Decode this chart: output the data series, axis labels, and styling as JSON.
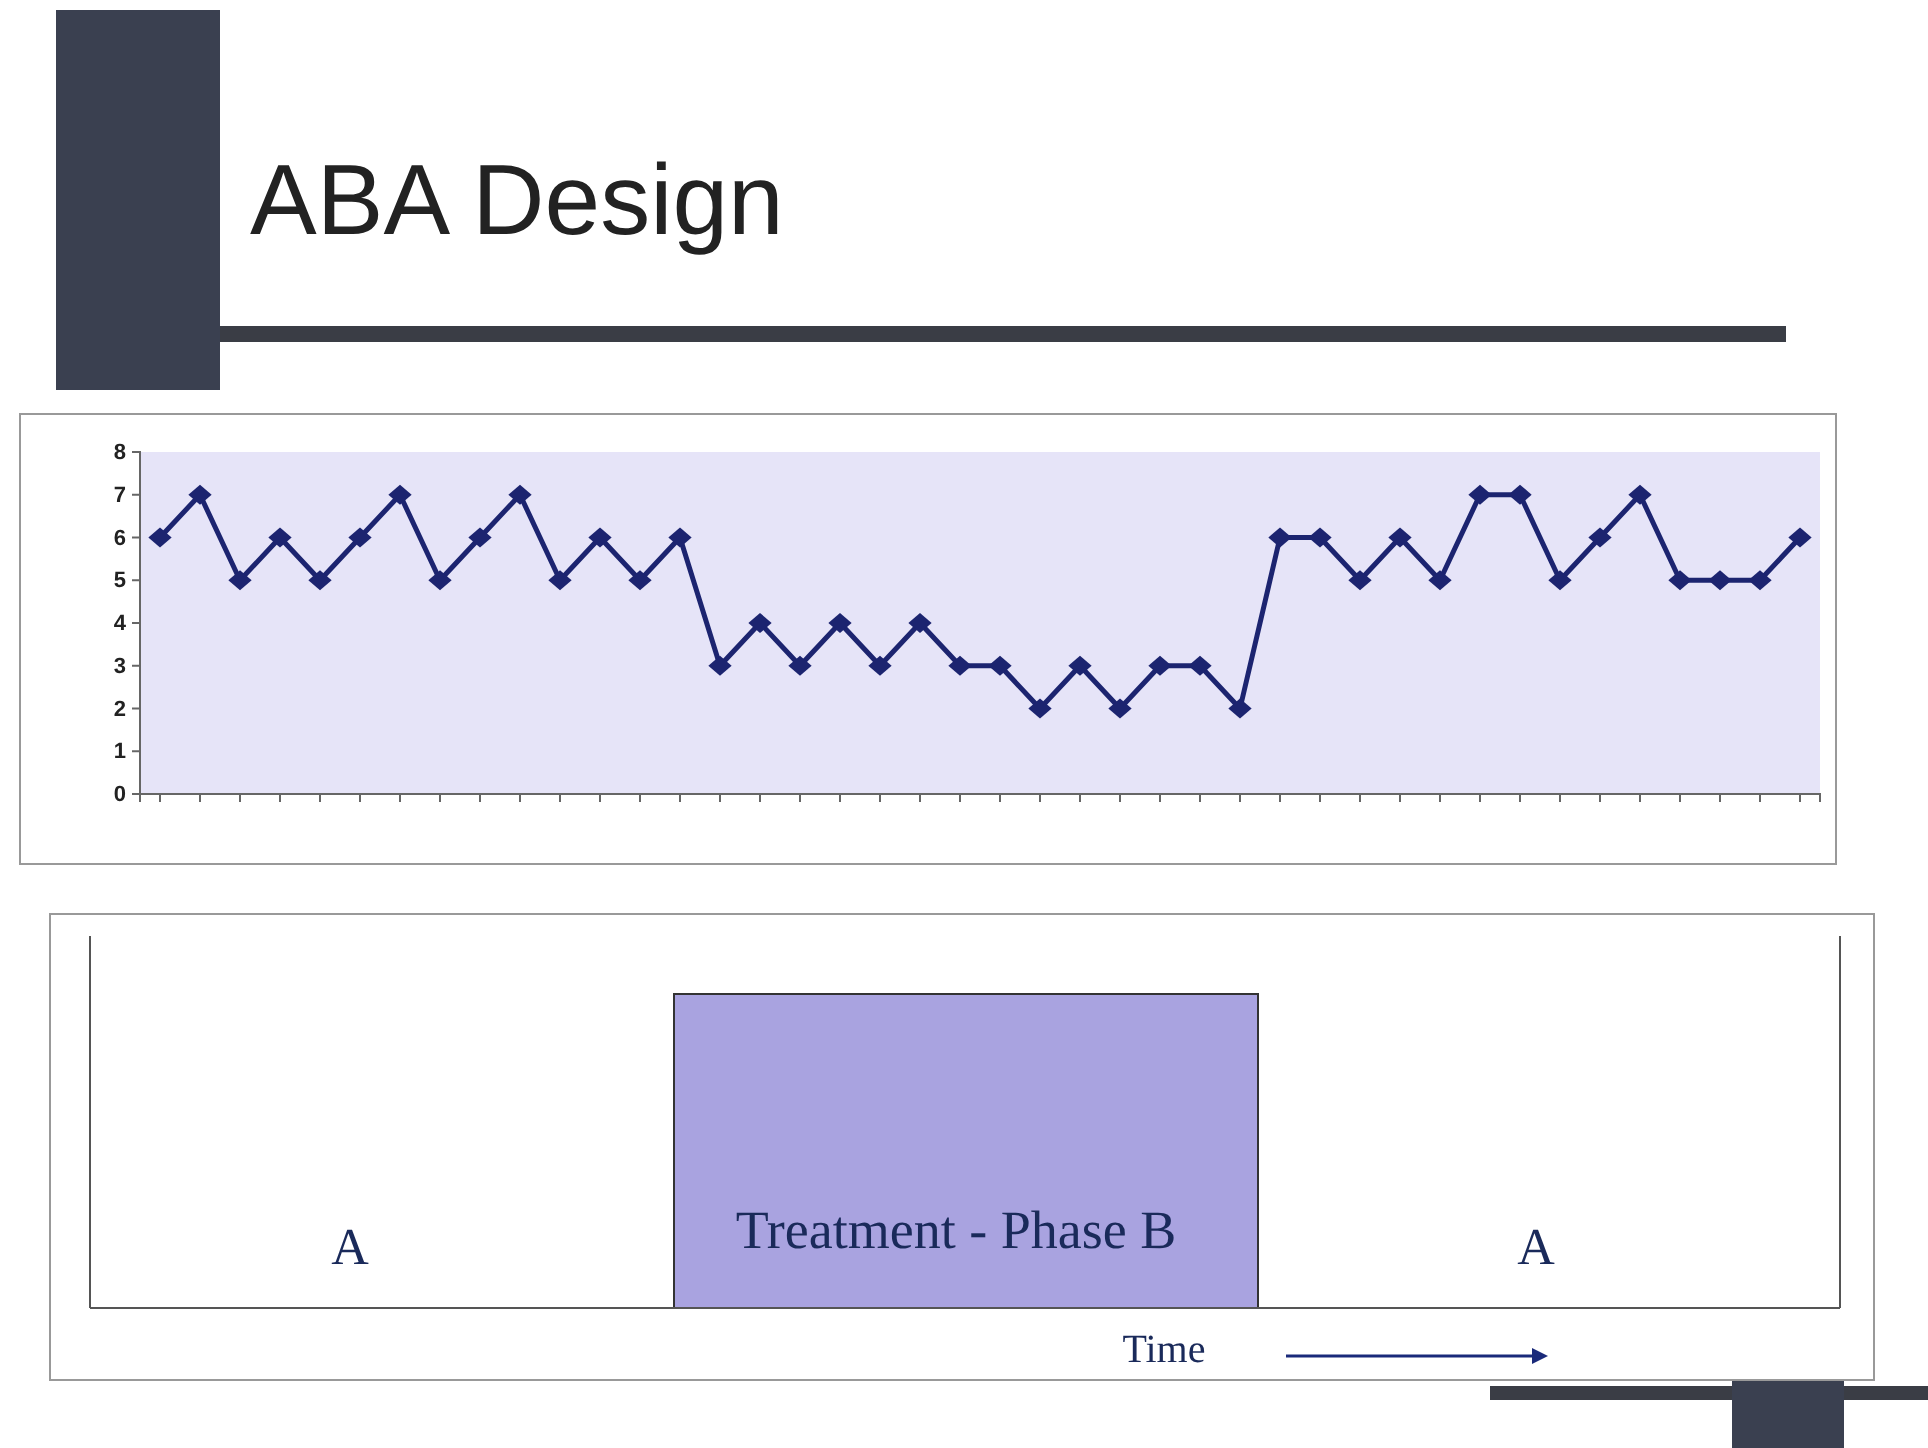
{
  "chart_data": [
    {
      "type": "line",
      "title": "ABA Design",
      "categories": [
        null,
        null,
        null,
        null,
        null,
        null,
        null,
        null,
        null,
        null,
        null,
        null,
        null,
        null,
        null,
        null,
        null,
        null,
        null,
        null,
        null,
        null,
        null,
        null,
        null,
        null,
        null,
        null,
        null,
        null,
        null,
        null,
        null,
        null,
        null,
        null,
        null,
        null,
        null,
        null,
        null,
        null
      ],
      "series": [
        {
          "color": "#1c2470",
          "values": [
            6,
            7,
            5,
            6,
            5,
            6,
            7,
            5,
            6,
            7,
            5,
            6,
            5,
            6,
            3,
            4,
            3,
            4,
            3,
            4,
            3,
            3,
            2,
            3,
            2,
            3,
            3,
            2,
            6,
            6,
            5,
            6,
            5,
            7,
            7,
            5,
            6,
            7,
            5,
            5,
            5,
            6
          ]
        }
      ],
      "ylim": [
        0,
        8
      ],
      "yticks": [
        0,
        1,
        2,
        3,
        4,
        5,
        6,
        7,
        8
      ],
      "grid": false,
      "marker": "diamond",
      "line_style": "solid"
    },
    {
      "type": "other",
      "xlabel": "Time",
      "annotations": [
        "A",
        "Treatment - Phase B",
        "A"
      ]
    }
  ]
}
